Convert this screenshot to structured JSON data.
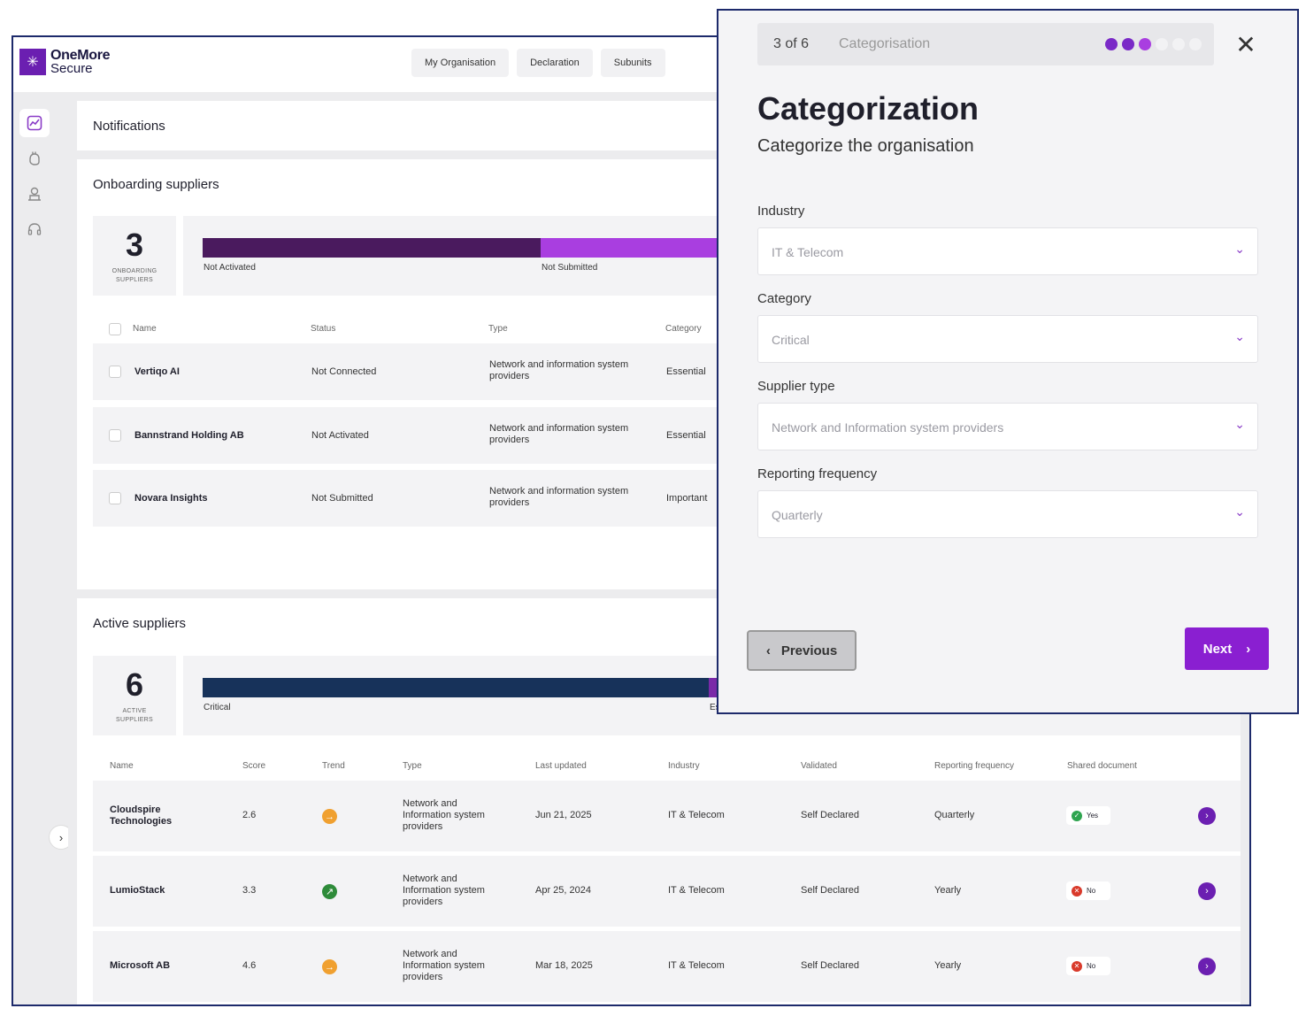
{
  "app": {
    "logo": {
      "line1": "OneMore",
      "line2": "Secure",
      "mark": "✳"
    },
    "nav": [
      "My Organisation",
      "Declaration",
      "Subunits"
    ],
    "sidebar_icons": [
      "dashboard-icon",
      "hand-icon",
      "building-icon",
      "headset-icon"
    ],
    "expand_glyph": "›"
  },
  "notifications": {
    "title": "Notifications"
  },
  "onboarding": {
    "title": "Onboarding suppliers",
    "count": "3",
    "count_label": "ONBOARDING SUPPLIERS",
    "segments": [
      {
        "label": "Not Activated",
        "color": "#4a1a5e"
      },
      {
        "label": "Not Submitted",
        "color": "#a93ee0"
      }
    ],
    "columns": [
      "Name",
      "Status",
      "Type",
      "Category"
    ],
    "rows": [
      {
        "name": "Vertiqo AI",
        "status": "Not Connected",
        "type": "Network and information system providers",
        "category": "Essential"
      },
      {
        "name": "Bannstrand Holding AB",
        "status": "Not Activated",
        "type": "Network and information system providers",
        "category": "Essential"
      },
      {
        "name": "Novara Insights",
        "status": "Not Submitted",
        "type": "Network and information system providers",
        "category": "Important"
      }
    ]
  },
  "active": {
    "title": "Active suppliers",
    "count": "6",
    "count_label": "ACTIVE SUPPLIERS",
    "segments": [
      {
        "label": "Critical",
        "color": "#17325a"
      },
      {
        "label": "Es",
        "color": "#7a2aa8"
      }
    ],
    "columns": [
      "Name",
      "Score",
      "Trend",
      "Type",
      "Last updated",
      "Industry",
      "Validated",
      "Reporting frequency",
      "Shared document"
    ],
    "rows": [
      {
        "name": "Cloudspire Technologies",
        "score": "2.6",
        "trend": "→",
        "trend_color": "#f0a030",
        "type": "Network and Information system providers",
        "updated": "Jun 21, 2025",
        "industry": "IT & Telecom",
        "validated": "Self Declared",
        "frequency": "Quarterly",
        "shared": "Yes",
        "shared_icon": "✓",
        "shared_color": "#2ea44f"
      },
      {
        "name": "LumioStack",
        "score": "3.3",
        "trend": "↗",
        "trend_color": "#2e8b3a",
        "type": "Network and Information system providers",
        "updated": "Apr 25, 2024",
        "industry": "IT & Telecom",
        "validated": "Self Declared",
        "frequency": "Yearly",
        "shared": "No",
        "shared_icon": "✕",
        "shared_color": "#d93a2b"
      },
      {
        "name": "Microsoft AB",
        "score": "4.6",
        "trend": "→",
        "trend_color": "#f0a030",
        "type": "Network and Information system providers",
        "updated": "Mar 18, 2025",
        "industry": "IT & Telecom",
        "validated": "Self Declared",
        "frequency": "Yearly",
        "shared": "No",
        "shared_icon": "✕",
        "shared_color": "#d93a2b"
      }
    ],
    "row_action_glyph": "›"
  },
  "modal": {
    "step": "3 of 6",
    "step_name": "Categorisation",
    "steps_total": 6,
    "steps_done": 2,
    "steps_current": 3,
    "dot_done_color": "#7a2ac7",
    "dot_current_color": "#a93ee0",
    "dot_todo_color": "#f2f2f4",
    "close_glyph": "✕",
    "title": "Categorization",
    "subtitle": "Categorize the organisation",
    "fields": [
      {
        "label": "Industry",
        "value": "IT & Telecom"
      },
      {
        "label": "Category",
        "value": "Critical"
      },
      {
        "label": "Supplier type",
        "value": "Network and Information system providers"
      },
      {
        "label": "Reporting frequency",
        "value": "Quarterly"
      }
    ],
    "chevron": "⌄",
    "previous": "Previous",
    "previous_glyph": "‹",
    "next": "Next",
    "next_glyph": "›"
  }
}
